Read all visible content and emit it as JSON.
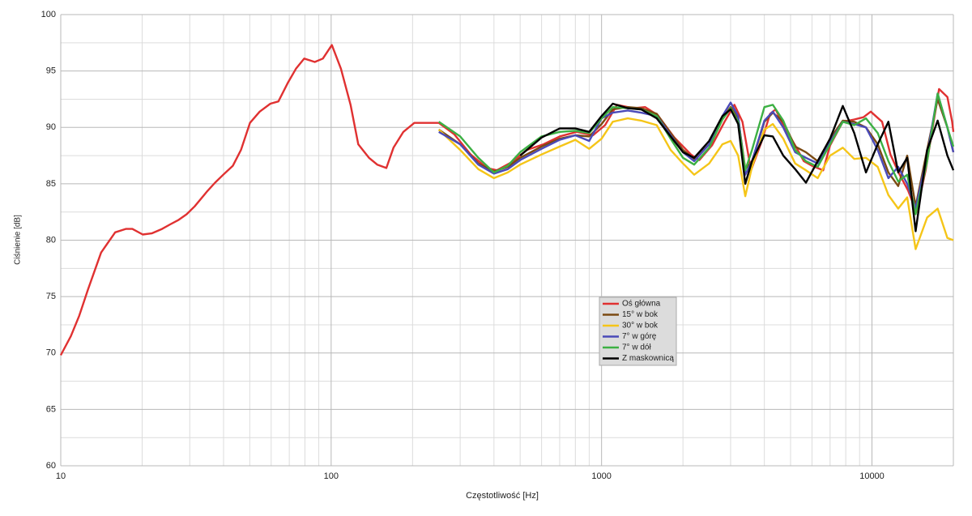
{
  "chart_data": {
    "type": "line",
    "x_label": "Częstotliwość [Hz]",
    "y_label": "Ciśnienie [dB]",
    "log_x": true,
    "grid": true,
    "legend": "center",
    "xlim": [
      10,
      20000
    ],
    "ylim": [
      60,
      100
    ],
    "xticks": [
      10,
      100,
      1000,
      10000
    ],
    "minor_xticks": [
      20,
      30,
      40,
      50,
      60,
      70,
      80,
      90,
      200,
      300,
      400,
      500,
      600,
      700,
      800,
      900,
      2000,
      3000,
      4000,
      5000,
      6000,
      7000,
      8000,
      9000
    ],
    "yticks": [
      60,
      65,
      70,
      75,
      80,
      85,
      90,
      95,
      100
    ],
    "minor_yticks": [
      62.5,
      67.5,
      72.5,
      77.5,
      82.5,
      87.5,
      92.5,
      97.5
    ],
    "x": [
      250,
      300,
      350,
      400,
      450,
      500,
      600,
      700,
      800,
      900,
      1000,
      1100,
      1250,
      1400,
      1600,
      1800,
      2000,
      2200,
      2500,
      2800,
      3000,
      3200,
      3400,
      3600,
      4000,
      4300,
      4700,
      5200,
      5700,
      6300,
      7000,
      7800,
      8600,
      9500,
      10500,
      11500,
      12500,
      13500,
      14500,
      16000,
      17500,
      19000,
      20000
    ],
    "series": [
      {
        "name": "Oś główna",
        "color": "#e03131",
        "x": [
          10,
          10.9,
          11.7,
          12.6,
          14.1,
          15.9,
          17.4,
          18.4,
          20.1,
          21.7,
          23.7,
          25.4,
          27.3,
          29.2,
          31.3,
          34.7,
          37.2,
          39.9,
          43.3,
          46.4,
          50.1,
          54.4,
          59.6,
          63.8,
          69.3,
          74.1,
          79.5,
          87,
          93.2,
          100.6,
          108.7,
          118,
          126,
          138,
          148,
          160,
          170,
          185,
          203,
          220,
          250,
          285,
          328,
          377,
          410,
          464,
          530,
          610,
          700,
          810,
          930,
          1030,
          1140,
          1310,
          1450,
          1610,
          1860,
          2140,
          2300,
          2560,
          2850,
          3100,
          3320,
          3570,
          3900,
          4200,
          4400,
          4700,
          5200,
          5600,
          6000,
          6600,
          7000,
          7800,
          8600,
          9300,
          9900,
          10900,
          11700,
          12600,
          13600,
          14600,
          15800,
          17700,
          19000,
          19800,
          20000
        ],
        "values": [
          69.8,
          71.5,
          73.3,
          75.6,
          78.9,
          80.7,
          81.0,
          81.0,
          80.5,
          80.6,
          81.0,
          81.4,
          81.8,
          82.3,
          83.0,
          84.3,
          85.1,
          85.8,
          86.6,
          88.0,
          90.4,
          91.4,
          92.1,
          92.3,
          94.0,
          95.2,
          96.1,
          95.8,
          96.1,
          97.3,
          95.2,
          92.0,
          88.5,
          87.3,
          86.7,
          86.4,
          88.2,
          89.6,
          90.4,
          90.4,
          90.4,
          89.4,
          87.6,
          86.4,
          86.2,
          86.9,
          88.0,
          88.5,
          89.2,
          89.6,
          89.3,
          90.2,
          92.0,
          91.7,
          91.8,
          91.1,
          89.1,
          87.6,
          87.1,
          88.4,
          90.5,
          92.0,
          90.5,
          86.2,
          88.7,
          91.2,
          91.6,
          90.2,
          88.4,
          87.0,
          86.6,
          86.2,
          88.4,
          90.5,
          90.7,
          90.9,
          91.4,
          90.5,
          87.6,
          85.9,
          84.4,
          82.5,
          86.2,
          93.4,
          92.7,
          90.5,
          89.6
        ]
      },
      {
        "name": "15° w bok",
        "color": "#7b4a12",
        "values": [
          89.8,
          88.5,
          86.8,
          86.1,
          86.5,
          87.3,
          88.3,
          89.0,
          89.3,
          89.2,
          90.3,
          91.6,
          91.8,
          91.7,
          91.2,
          89.5,
          88.0,
          87.2,
          88.5,
          90.8,
          91.8,
          90.8,
          86.3,
          87.0,
          90.5,
          91.3,
          90.5,
          88.3,
          87.8,
          87.0,
          89.0,
          90.6,
          90.5,
          90.0,
          88.5,
          86.0,
          84.8,
          87.5,
          83.0,
          88.0,
          92.5,
          90.0,
          87.8
        ]
      },
      {
        "name": "30° w bok",
        "color": "#f5c518",
        "values": [
          89.8,
          88.0,
          86.3,
          85.5,
          86.0,
          86.7,
          87.6,
          88.3,
          88.9,
          88.1,
          89.0,
          90.5,
          90.8,
          90.6,
          90.2,
          88.0,
          86.8,
          85.8,
          86.8,
          88.5,
          88.8,
          87.5,
          83.9,
          86.5,
          89.8,
          90.3,
          89.0,
          86.8,
          86.2,
          85.5,
          87.5,
          88.2,
          87.2,
          87.3,
          86.5,
          84.0,
          82.8,
          83.8,
          79.2,
          82.0,
          82.8,
          80.2,
          80.0
        ]
      },
      {
        "name": "7° w górę",
        "color": "#4a4ab8",
        "values": [
          89.6,
          88.5,
          86.7,
          85.9,
          86.3,
          87.1,
          88.1,
          88.9,
          89.3,
          88.8,
          90.8,
          91.3,
          91.5,
          91.3,
          91.0,
          89.3,
          87.8,
          87.0,
          88.5,
          91.0,
          92.2,
          91.0,
          85.8,
          87.0,
          90.6,
          91.4,
          90.0,
          87.8,
          87.3,
          86.8,
          88.7,
          90.5,
          90.3,
          90.0,
          88.0,
          85.5,
          86.5,
          85.0,
          82.8,
          87.5,
          93.0,
          90.0,
          87.8
        ]
      },
      {
        "name": "7° w dół",
        "color": "#3cb043",
        "values": [
          90.5,
          89.2,
          87.3,
          86.0,
          86.6,
          87.8,
          89.2,
          89.6,
          89.7,
          89.5,
          90.8,
          91.8,
          91.7,
          91.6,
          91.0,
          89.0,
          87.3,
          86.7,
          88.2,
          90.7,
          91.7,
          90.5,
          86.2,
          88.0,
          91.8,
          92.0,
          90.6,
          88.0,
          87.0,
          86.5,
          88.5,
          90.5,
          90.2,
          90.8,
          89.5,
          87.0,
          85.2,
          85.8,
          82.3,
          87.0,
          93.0,
          90.0,
          88.3
        ]
      },
      {
        "name": "Z maskownicą",
        "color": "#000000",
        "values": [
          null,
          null,
          null,
          null,
          null,
          87.5,
          89.1,
          89.9,
          89.9,
          89.6,
          91.0,
          92.1,
          91.7,
          91.6,
          90.8,
          89.2,
          87.8,
          87.3,
          88.8,
          91.0,
          91.6,
          90.3,
          85.0,
          87.0,
          89.3,
          89.2,
          87.5,
          86.3,
          85.1,
          87.0,
          89.0,
          91.9,
          89.5,
          86.0,
          88.5,
          90.5,
          86.0,
          87.3,
          80.8,
          88.0,
          90.6,
          87.5,
          86.2
        ]
      }
    ]
  }
}
